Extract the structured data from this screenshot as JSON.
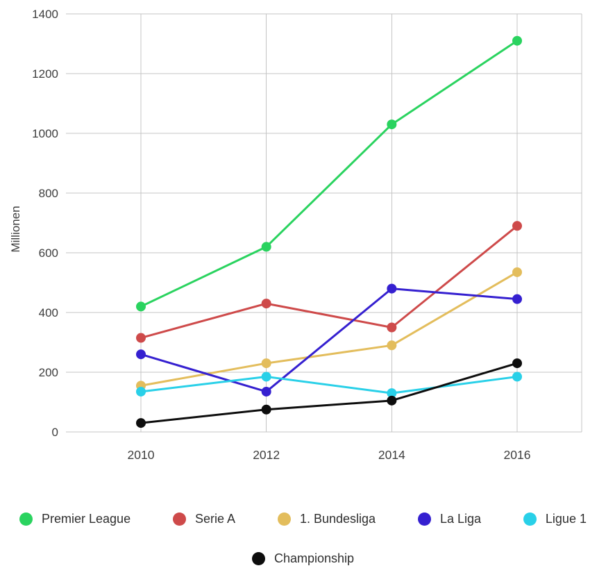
{
  "chart_data": {
    "type": "line",
    "title": "",
    "xlabel": "",
    "ylabel": "Millionen",
    "x": [
      "2010",
      "2012",
      "2014",
      "2016"
    ],
    "ylim": [
      0,
      1400
    ],
    "ytick_step": 200,
    "grid": true,
    "legend_position": "bottom",
    "series": [
      {
        "name": "Premier League",
        "color": "#2ad35f",
        "values": [
          420,
          620,
          1030,
          1310
        ]
      },
      {
        "name": "Serie A",
        "color": "#ce4a4a",
        "values": [
          315,
          430,
          350,
          690
        ]
      },
      {
        "name": "1. Bundesliga",
        "color": "#e3bd5c",
        "values": [
          155,
          230,
          290,
          535
        ]
      },
      {
        "name": "La Liga",
        "color": "#3520d0",
        "values": [
          260,
          135,
          480,
          445
        ]
      },
      {
        "name": "Ligue 1",
        "color": "#29d0e8",
        "values": [
          135,
          185,
          130,
          185
        ]
      },
      {
        "name": "Championship",
        "color": "#0d0d0d",
        "values": [
          30,
          75,
          105,
          230
        ]
      }
    ],
    "legend_rows": [
      [
        "Premier League",
        "Serie A",
        "1. Bundesliga",
        "La Liga",
        "Ligue 1"
      ],
      [
        "Championship"
      ]
    ]
  }
}
